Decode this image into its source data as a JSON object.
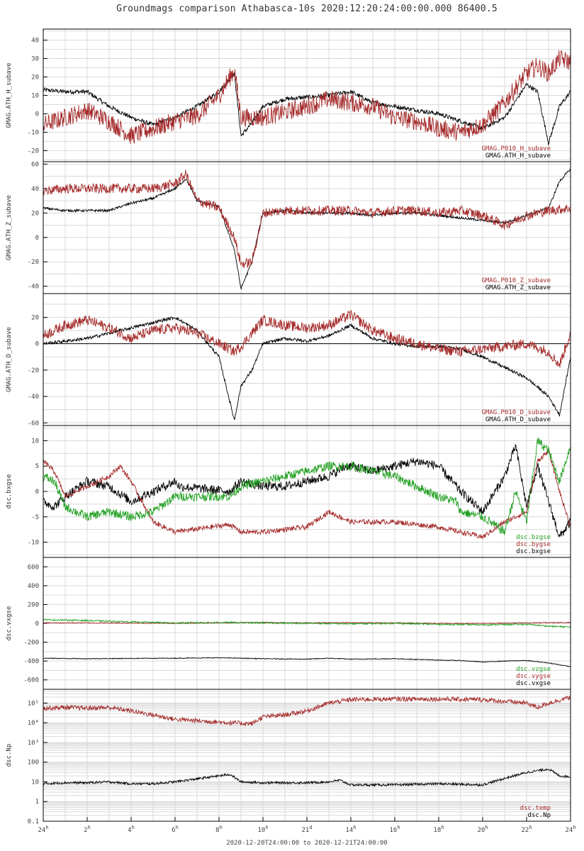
{
  "title": "Groundmags comparison Athabasca-10s 2020:12:20:24:00:00.000 86400.5",
  "xlabel": "2020-12-20T24:00:00 to 2020-12-21T24:00:00",
  "colors": {
    "black": "#000000",
    "red": "#a52a2a",
    "green": "#22a022",
    "grid": "#d9d9d9"
  },
  "x_ticks": [
    {
      "h": 0,
      "main": "24",
      "sup": "h"
    },
    {
      "h": 2,
      "main": "2",
      "sup": "h"
    },
    {
      "h": 4,
      "main": "4",
      "sup": "h"
    },
    {
      "h": 6,
      "main": "6",
      "sup": "h"
    },
    {
      "h": 8,
      "main": "8",
      "sup": "h"
    },
    {
      "h": 10,
      "main": "10",
      "sup": "h"
    },
    {
      "h": 12,
      "main": "21",
      "sup": "d"
    },
    {
      "h": 14,
      "main": "14",
      "sup": "h"
    },
    {
      "h": 16,
      "main": "16",
      "sup": "h"
    },
    {
      "h": 18,
      "main": "18",
      "sup": "h"
    },
    {
      "h": 20,
      "main": "20",
      "sup": "h"
    },
    {
      "h": 22,
      "main": "22",
      "sup": "h"
    },
    {
      "h": 24,
      "main": "24",
      "sup": "h"
    }
  ],
  "chart_data": [
    {
      "type": "line",
      "ylabel": "GMAG.ATH_H_subave",
      "ylim": [
        -26,
        46
      ],
      "yticks": [
        -20,
        -10,
        0,
        10,
        20,
        30,
        40
      ],
      "ytick_labels": [
        "-20",
        "-10",
        "0",
        "10",
        "20",
        "30",
        "40"
      ],
      "grid": true,
      "legend": "bottom-right",
      "legend_entries": [
        "GMAG.P010_H_subave",
        "GMAG.ATH_H_subave"
      ],
      "series": [
        {
          "name": "GMAG.P010_H_subave",
          "color": "red",
          "noise": 5,
          "x": [
            0,
            1,
            2,
            3,
            4,
            5,
            6,
            7,
            8,
            8.7,
            9,
            10,
            11,
            12,
            13,
            14,
            15,
            16,
            17,
            18,
            19,
            20,
            21,
            22,
            22.5,
            23,
            23.5,
            24
          ],
          "y": [
            -6,
            -2,
            2,
            -4,
            -12,
            -8,
            -4,
            -1,
            10,
            24,
            -2,
            -2,
            1,
            4,
            8,
            6,
            4,
            -2,
            -4,
            -8,
            -10,
            -6,
            6,
            22,
            26,
            22,
            30,
            28
          ]
        },
        {
          "name": "GMAG.ATH_H_subave",
          "color": "black",
          "noise": 1.2,
          "x": [
            0,
            1,
            2,
            3,
            4,
            5,
            6,
            7,
            8,
            8.7,
            9,
            9.5,
            10,
            11,
            12,
            13,
            14,
            15,
            16,
            17,
            18,
            19,
            20,
            21,
            22,
            22.5,
            23,
            23.5,
            24
          ],
          "y": [
            13,
            12,
            12,
            4,
            -2,
            -6,
            -2,
            4,
            12,
            22,
            -12,
            -5,
            4,
            8,
            9,
            10,
            12,
            6,
            4,
            2,
            0,
            -4,
            -8,
            -2,
            16,
            12,
            -16,
            4,
            12
          ]
        }
      ]
    },
    {
      "type": "line",
      "ylabel": "GMAG.ATH_Z_subave",
      "ylim": [
        -46,
        62
      ],
      "yticks": [
        -40,
        -20,
        0,
        20,
        40,
        60
      ],
      "ytick_labels": [
        "-40",
        "-20",
        "0",
        "20",
        "40",
        "60"
      ],
      "grid": true,
      "legend": "bottom-right",
      "legend_entries": [
        "GMAG.P010_Z_subave",
        "GMAG.ATH_Z_subave"
      ],
      "series": [
        {
          "name": "GMAG.P010_Z_subave",
          "color": "red",
          "noise": 4,
          "x": [
            0,
            1,
            2,
            3,
            4,
            5,
            6,
            6.5,
            7,
            8,
            8.7,
            9,
            9.5,
            10,
            11,
            12,
            13,
            14,
            15,
            16,
            17,
            18,
            19,
            20,
            21,
            22,
            23,
            24
          ],
          "y": [
            38,
            40,
            40,
            40,
            40,
            40,
            44,
            52,
            30,
            24,
            0,
            -22,
            -20,
            20,
            22,
            22,
            22,
            22,
            20,
            22,
            22,
            20,
            22,
            18,
            10,
            18,
            22,
            24
          ]
        },
        {
          "name": "GMAG.ATH_Z_subave",
          "color": "black",
          "noise": 1,
          "x": [
            0,
            1,
            2,
            3,
            4,
            5,
            6,
            6.5,
            7,
            8,
            8.7,
            9,
            9.5,
            10,
            11,
            12,
            13,
            14,
            15,
            16,
            17,
            18,
            19,
            20,
            21,
            22,
            23,
            23.5,
            24
          ],
          "y": [
            24,
            22,
            22,
            22,
            28,
            32,
            40,
            48,
            30,
            25,
            -10,
            -42,
            -20,
            20,
            22,
            20,
            20,
            20,
            18,
            20,
            20,
            18,
            16,
            14,
            12,
            18,
            24,
            46,
            56
          ]
        }
      ]
    },
    {
      "type": "line",
      "ylabel": "GMAG.ATH_D_subave",
      "ylim": [
        -62,
        38
      ],
      "yticks": [
        -60,
        -40,
        -20,
        0,
        20
      ],
      "ytick_labels": [
        "-60",
        "-40",
        "-20",
        "0",
        "20"
      ],
      "grid": true,
      "zero_line": true,
      "legend": "bottom-right",
      "legend_entries": [
        "GMAG.P010_D_subave",
        "GMAG.ATH_D_subave"
      ],
      "series": [
        {
          "name": "GMAG.P010_D_subave",
          "color": "red",
          "noise": 4,
          "x": [
            0,
            1,
            2,
            3,
            4,
            5,
            6,
            7,
            8,
            8.7,
            9,
            10,
            11,
            12,
            13,
            14,
            15,
            16,
            17,
            18,
            19,
            20,
            21,
            22,
            23,
            23.5,
            24
          ],
          "y": [
            6,
            14,
            18,
            12,
            4,
            10,
            12,
            8,
            0,
            -6,
            -2,
            18,
            14,
            12,
            14,
            22,
            10,
            4,
            0,
            -4,
            -6,
            -4,
            -2,
            0,
            -6,
            -16,
            8
          ]
        },
        {
          "name": "GMAG.ATH_D_subave",
          "color": "black",
          "noise": 1.2,
          "x": [
            0,
            1,
            2,
            3,
            4,
            5,
            6,
            7,
            7.5,
            8,
            8.7,
            9,
            9.5,
            10,
            11,
            12,
            13,
            14,
            15,
            16,
            17,
            18,
            19,
            20,
            21,
            22,
            23,
            23.5,
            24
          ],
          "y": [
            0,
            2,
            4,
            8,
            12,
            16,
            20,
            10,
            0,
            -10,
            -58,
            -32,
            -20,
            0,
            4,
            2,
            6,
            14,
            4,
            0,
            -2,
            -2,
            -4,
            -10,
            -18,
            -26,
            -40,
            -54,
            -10
          ]
        }
      ]
    },
    {
      "type": "line",
      "ylabel": "dsc.bxgse",
      "ylim": [
        -13,
        13
      ],
      "yticks": [
        -10,
        -5,
        0,
        5,
        10
      ],
      "ytick_labels": [
        "-10",
        "-5",
        "0",
        "5",
        "10"
      ],
      "grid": true,
      "legend": "bottom-right",
      "legend_entries": [
        "dsc.bzgse",
        "dsc.bygse",
        "dsc.bxgse"
      ],
      "series": [
        {
          "name": "dsc.bzgse",
          "color": "green",
          "noise": 0.9,
          "x": [
            0,
            0.5,
            1,
            2,
            3,
            4,
            5,
            6,
            8.5,
            9,
            10,
            11,
            12,
            13,
            13.7,
            14,
            15,
            16,
            17,
            18,
            18.8,
            19,
            20,
            21,
            21.5,
            22,
            22.5,
            23,
            23.5,
            24
          ],
          "y": [
            3,
            2,
            -3,
            -5,
            -4,
            -5,
            -4,
            -1,
            -1,
            1,
            2,
            3,
            4,
            5,
            5,
            5,
            4,
            3,
            1,
            -1,
            -2,
            -4,
            -5,
            -8,
            0,
            -6,
            10,
            8,
            2,
            9
          ]
        },
        {
          "name": "dsc.bygse",
          "color": "red",
          "noise": 0.5,
          "x": [
            0,
            0.5,
            1,
            2,
            3,
            3.5,
            4,
            5,
            5.5,
            6,
            8.5,
            9,
            10,
            12,
            13,
            13.5,
            14,
            16,
            18,
            19,
            20,
            21,
            22,
            22.5,
            23,
            23.5,
            24
          ],
          "y": [
            6,
            4,
            -1,
            1,
            3,
            5,
            2,
            -6,
            -7,
            -8,
            -6.5,
            -8,
            -8,
            -7,
            -4,
            -5,
            -6,
            -6,
            -7,
            -8,
            -9,
            -6,
            -4,
            6,
            8,
            0,
            -7
          ]
        },
        {
          "name": "dsc.bxgse",
          "color": "black",
          "noise": 0.9,
          "x": [
            0,
            0.5,
            1,
            2,
            3,
            4,
            5,
            6,
            6.2,
            8.5,
            9,
            10,
            11,
            12,
            13,
            13.8,
            14,
            15,
            16,
            17,
            18,
            19,
            20,
            21,
            21.5,
            22,
            22.5,
            23,
            23.5,
            24
          ],
          "y": [
            -2,
            -3,
            -1,
            2,
            1,
            -2,
            0,
            2,
            1,
            0,
            2,
            1,
            1,
            2,
            3,
            5,
            5,
            4,
            5,
            6,
            5,
            0,
            -4,
            3,
            9,
            -3,
            5,
            -2,
            -9,
            -6
          ]
        }
      ]
    },
    {
      "type": "line",
      "ylabel": "dsc.vxgse",
      "ylim": [
        -700,
        700
      ],
      "yticks": [
        -600,
        -400,
        -200,
        0,
        200,
        400,
        600
      ],
      "ytick_labels": [
        "-600",
        "-400",
        "-200",
        "0",
        "200",
        "400",
        "600"
      ],
      "grid": true,
      "legend": "bottom-right",
      "legend_entries": [
        "dsc.vzgse",
        "dsc.vygse",
        "dsc.vxgse"
      ],
      "series": [
        {
          "name": "dsc.vzgse",
          "color": "green",
          "noise": 8,
          "x": [
            0,
            2,
            4,
            6,
            8,
            10,
            12,
            14,
            16,
            18,
            20,
            22,
            23,
            24
          ],
          "y": [
            40,
            30,
            15,
            5,
            10,
            5,
            0,
            -5,
            0,
            -10,
            -15,
            -10,
            -30,
            -40
          ]
        },
        {
          "name": "dsc.vygse",
          "color": "red",
          "noise": 5,
          "x": [
            0,
            2,
            4,
            6,
            8,
            10,
            12,
            14,
            16,
            18,
            20,
            22,
            24
          ],
          "y": [
            5,
            5,
            3,
            0,
            5,
            10,
            5,
            8,
            5,
            0,
            0,
            5,
            10
          ]
        },
        {
          "name": "dsc.vxgse",
          "color": "black",
          "noise": 4,
          "x": [
            0,
            2,
            4,
            6,
            8,
            10,
            12,
            13,
            14,
            16,
            18,
            19,
            20,
            21,
            22,
            23,
            23.5,
            24
          ],
          "y": [
            -370,
            -375,
            -372,
            -370,
            -365,
            -375,
            -380,
            -370,
            -380,
            -375,
            -390,
            -395,
            -410,
            -400,
            -395,
            -420,
            -440,
            -460
          ]
        }
      ]
    },
    {
      "type": "line",
      "ylabel": "dsc.Np",
      "yscale": "log",
      "ylim": [
        0.1,
        500000
      ],
      "yticks": [
        0.1,
        1,
        10,
        100,
        1000,
        10000,
        100000
      ],
      "ytick_labels": [
        "0.1",
        "1",
        "10",
        "100",
        "10³",
        "10⁴",
        "10⁵"
      ],
      "grid": true,
      "legend": "bottom-right",
      "legend_entries": [
        "dsc.temp",
        "dsc.Np"
      ],
      "series": [
        {
          "name": "dsc.temp",
          "color": "red",
          "noise": 0.12,
          "x": [
            0,
            1,
            2,
            3,
            4,
            5,
            6,
            8.5,
            9.5,
            10,
            11,
            12,
            13,
            14,
            16,
            18,
            20,
            22,
            22.5,
            23,
            24
          ],
          "y": [
            55000,
            60000,
            55000,
            60000,
            40000,
            25000,
            15000,
            10000,
            9000,
            20000,
            25000,
            40000,
            100000,
            150000,
            160000,
            160000,
            150000,
            100000,
            60000,
            100000,
            200000
          ]
        },
        {
          "name": "dsc.Np",
          "color": "black",
          "noise": 0.06,
          "x": [
            0,
            1,
            2,
            3,
            4,
            5,
            6,
            8.5,
            9,
            10,
            12,
            13,
            13.5,
            14,
            16,
            18,
            20,
            21,
            22,
            23,
            23.5,
            24
          ],
          "y": [
            8,
            9,
            9,
            10,
            8,
            8,
            10,
            24,
            10,
            9,
            9,
            10,
            12,
            7,
            7,
            8,
            7,
            15,
            30,
            45,
            20,
            18
          ]
        }
      ]
    }
  ]
}
